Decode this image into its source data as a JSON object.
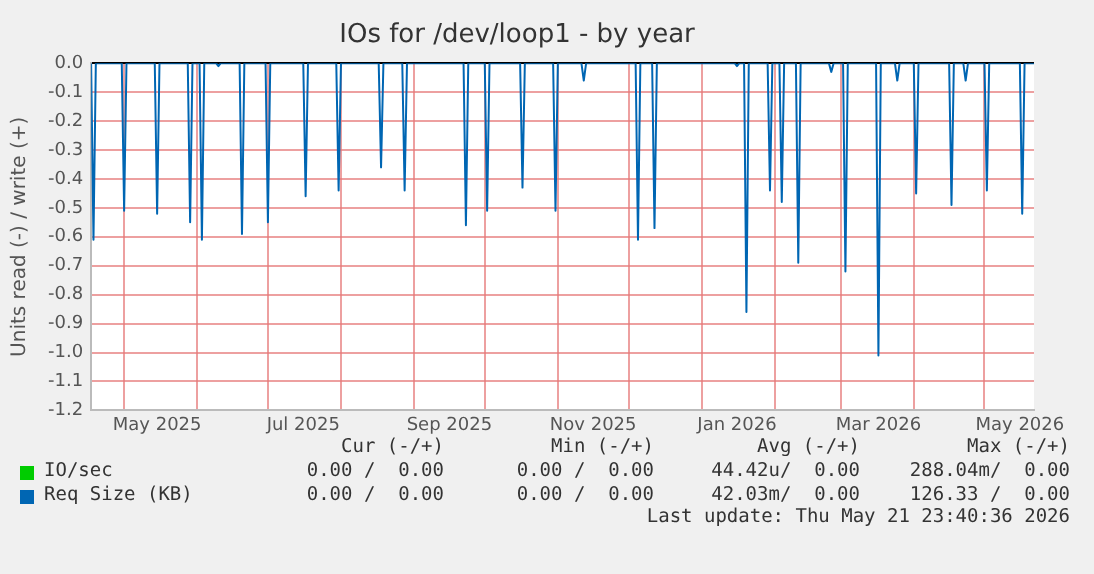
{
  "chart_data": {
    "type": "line",
    "title": "IOs for /dev/loop1 - by year",
    "ylabel": "Units read (-) / write (+)",
    "xlim": [
      "2025-04-17",
      "2026-05-22"
    ],
    "xticks": [
      {
        "value": "2025-05-01",
        "label": null
      },
      {
        "value": "2025-05-15",
        "label": "May 2025"
      },
      {
        "value": "2025-06-01",
        "label": null
      },
      {
        "value": "2025-07-01",
        "label": null
      },
      {
        "value": "2025-07-16",
        "label": "Jul 2025"
      },
      {
        "value": "2025-08-01",
        "label": null
      },
      {
        "value": "2025-09-01",
        "label": null
      },
      {
        "value": "2025-09-16",
        "label": "Sep 2025"
      },
      {
        "value": "2025-10-01",
        "label": null
      },
      {
        "value": "2025-11-01",
        "label": null
      },
      {
        "value": "2025-11-16",
        "label": "Nov 2025"
      },
      {
        "value": "2025-12-01",
        "label": null
      },
      {
        "value": "2026-01-01",
        "label": null
      },
      {
        "value": "2026-01-16",
        "label": "Jan 2026"
      },
      {
        "value": "2026-02-01",
        "label": null
      },
      {
        "value": "2026-03-01",
        "label": null
      },
      {
        "value": "2026-03-17",
        "label": "Mar 2026"
      },
      {
        "value": "2026-04-01",
        "label": null
      },
      {
        "value": "2026-05-01",
        "label": null
      },
      {
        "value": "2026-05-16",
        "label": "May 2026"
      }
    ],
    "ylim": [
      -1.2,
      0
    ],
    "yticks": [
      {
        "value": 0,
        "label": "0.0"
      },
      -0.1,
      -0.2,
      -0.3,
      -0.4,
      -0.5,
      -0.6,
      -0.7,
      -0.8,
      -0.9,
      {
        "value": -1,
        "label": "-1.0"
      },
      -1.1,
      -1.2
    ],
    "grid": true,
    "legend": "bottom",
    "marker": "none",
    "series": [
      {
        "name": "IO/sec",
        "color": "#00cc00"
      },
      {
        "name": "Req Size (KB)",
        "color": "#0066b3",
        "x": [
          "2025-04-17",
          "2025-04-18",
          "2025-04-19",
          "2025-04-30",
          "2025-05-01",
          "2025-05-02",
          "2025-05-14",
          "2025-05-15",
          "2025-05-16",
          "2025-05-28",
          "2025-05-29",
          "2025-05-30",
          "2025-06-02",
          "2025-06-03",
          "2025-06-04",
          "2025-06-09",
          "2025-06-10",
          "2025-06-11",
          "2025-06-19",
          "2025-06-20",
          "2025-06-21",
          "2025-06-30",
          "2025-07-01",
          "2025-07-02",
          "2025-07-16",
          "2025-07-17",
          "2025-07-18",
          "2025-07-30",
          "2025-07-31",
          "2025-08-01",
          "2025-08-17",
          "2025-08-18",
          "2025-08-19",
          "2025-08-27",
          "2025-08-28",
          "2025-08-29",
          "2025-09-22",
          "2025-09-23",
          "2025-09-24",
          "2025-10-01",
          "2025-10-02",
          "2025-10-03",
          "2025-10-16",
          "2025-10-17",
          "2025-10-18",
          "2025-10-30",
          "2025-10-31",
          "2025-11-01",
          "2025-11-11",
          "2025-11-12",
          "2025-11-13",
          "2025-12-04",
          "2025-12-05",
          "2025-12-06",
          "2025-12-11",
          "2025-12-12",
          "2025-12-13",
          "2026-01-15",
          "2026-01-16",
          "2026-01-17",
          "2026-01-19",
          "2026-01-20",
          "2026-01-21",
          "2026-01-29",
          "2026-01-30",
          "2026-01-31",
          "2026-02-03",
          "2026-02-04",
          "2026-02-05",
          "2026-02-10",
          "2026-02-11",
          "2026-02-12",
          "2026-02-24",
          "2026-02-25",
          "2026-02-26",
          "2026-03-02",
          "2026-03-03",
          "2026-03-04",
          "2026-03-16",
          "2026-03-17",
          "2026-03-18",
          "2026-03-24",
          "2026-03-25",
          "2026-03-26",
          "2026-04-01",
          "2026-04-02",
          "2026-04-03",
          "2026-04-16",
          "2026-04-17",
          "2026-04-18",
          "2026-04-22",
          "2026-04-23",
          "2026-04-24",
          "2026-05-01",
          "2026-05-02",
          "2026-05-03",
          "2026-05-16",
          "2026-05-17",
          "2026-05-18",
          "2026-05-22"
        ],
        "values": [
          0,
          -0.61,
          0,
          0,
          -0.51,
          0,
          0,
          -0.52,
          0,
          0,
          -0.55,
          0,
          0,
          -0.61,
          0,
          0,
          -0.01,
          0,
          0,
          -0.59,
          0,
          0,
          -0.55,
          0,
          0,
          -0.46,
          0,
          0,
          -0.44,
          0,
          0,
          -0.36,
          0,
          0,
          -0.44,
          0,
          0,
          -0.56,
          0,
          0,
          -0.51,
          0,
          0,
          -0.43,
          0,
          0,
          -0.51,
          0,
          0,
          -0.06,
          0,
          0,
          -0.61,
          0,
          0,
          -0.57,
          0,
          0,
          -0.01,
          0,
          0,
          -0.86,
          0,
          0,
          -0.44,
          0,
          0,
          -0.48,
          0,
          0,
          -0.69,
          0,
          0,
          -0.03,
          0,
          0,
          -0.72,
          0,
          0,
          -1.01,
          0,
          0,
          -0.06,
          0,
          0,
          -0.45,
          0,
          0,
          -0.49,
          0,
          0,
          -0.06,
          0,
          0,
          -0.44,
          0,
          0,
          -0.52,
          0,
          0
        ]
      }
    ],
    "annotations": [
      "Cur (-/+)",
      "Min (-/+)",
      "Avg (-/+)",
      "Max (-/+)",
      "0.00 /  0.00",
      "0.00 /  0.00",
      "44.42u/  0.00",
      "288.04m/  0.00",
      "0.00 /  0.00",
      "0.00 /  0.00",
      "42.03m/  0.00",
      "126.33 /  0.00",
      "Last update: Thu May 21 23:40:36 2026"
    ]
  }
}
